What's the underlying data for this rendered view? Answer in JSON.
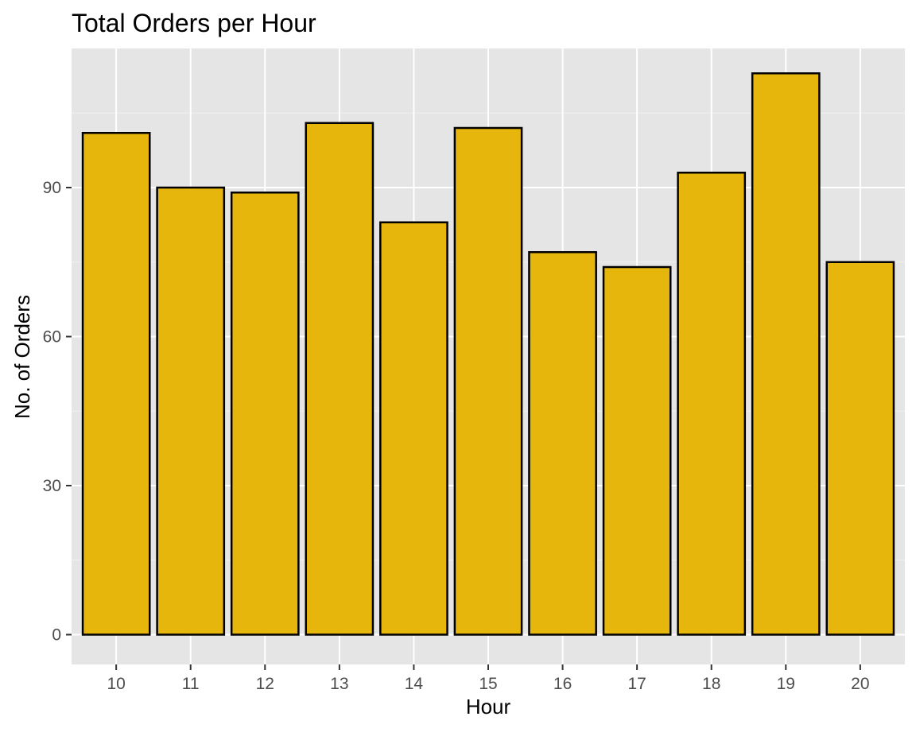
{
  "chart_data": {
    "type": "bar",
    "title": "Total Orders per Hour",
    "xlabel": "Hour",
    "ylabel": "No. of Orders",
    "categories": [
      "10",
      "11",
      "12",
      "13",
      "14",
      "15",
      "16",
      "17",
      "18",
      "19",
      "20"
    ],
    "values": [
      101,
      90,
      89,
      103,
      83,
      102,
      77,
      74,
      93,
      113,
      75
    ],
    "ylim": [
      -6,
      118
    ],
    "yticks": [
      0,
      30,
      60,
      90
    ],
    "yticks_labels": [
      "0",
      "30",
      "60",
      "90"
    ],
    "grid": true,
    "legend": "none",
    "colors": {
      "bar_fill": "#E7B60D",
      "bar_stroke": "#000000",
      "panel_background": "#E5E5E5",
      "grid_major": "#FFFFFF",
      "grid_minor": "#F2F2F2",
      "tick_label": "#4D4D4D"
    }
  }
}
